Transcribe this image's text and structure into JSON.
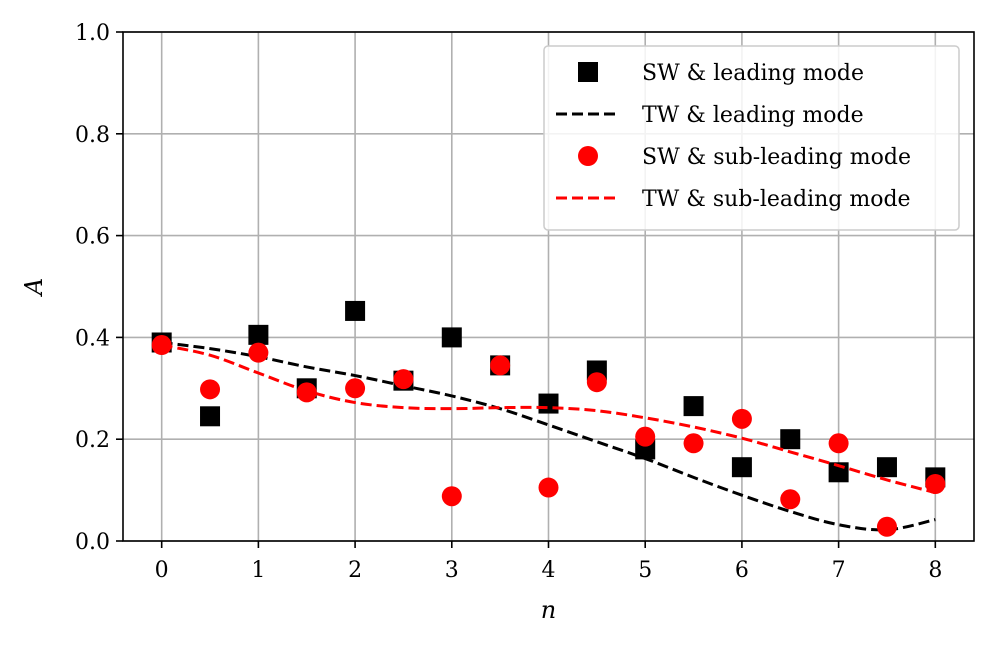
{
  "chart_data": {
    "type": "scatter",
    "title": "",
    "xlabel": "n",
    "ylabel": "A",
    "xlim": [
      -0.4,
      8.4
    ],
    "ylim": [
      0.0,
      1.0
    ],
    "xticks": [
      0,
      1,
      2,
      3,
      4,
      5,
      6,
      7,
      8
    ],
    "xtick_labels": [
      "0",
      "1",
      "2",
      "3",
      "4",
      "5",
      "6",
      "7",
      "8"
    ],
    "yticks": [
      0.0,
      0.2,
      0.4,
      0.6,
      0.8,
      1.0
    ],
    "ytick_labels": [
      "0.0",
      "0.2",
      "0.4",
      "0.6",
      "0.8",
      "1.0"
    ],
    "grid": true,
    "legend_position": "top-right",
    "series": [
      {
        "name": "SW & leading mode",
        "kind": "marker",
        "marker": "square",
        "color": "#000000",
        "x": [
          0,
          0.5,
          1,
          1.5,
          2,
          2.5,
          3,
          3.5,
          4,
          4.5,
          5,
          5.5,
          6,
          6.5,
          7,
          7.5,
          8
        ],
        "y": [
          0.39,
          0.245,
          0.405,
          0.3,
          0.452,
          0.315,
          0.4,
          0.345,
          0.27,
          0.335,
          0.18,
          0.265,
          0.145,
          0.2,
          0.135,
          0.145,
          0.125
        ]
      },
      {
        "name": "TW & leading mode",
        "kind": "line",
        "dash": "dashed",
        "color": "#000000",
        "x": [
          0,
          0.5,
          1,
          1.5,
          2,
          2.5,
          3,
          3.5,
          4,
          4.5,
          5,
          5.5,
          6,
          6.5,
          7,
          7.5,
          8
        ],
        "y": [
          0.39,
          0.378,
          0.362,
          0.342,
          0.325,
          0.305,
          0.285,
          0.26,
          0.228,
          0.195,
          0.162,
          0.125,
          0.09,
          0.058,
          0.032,
          0.022,
          0.042
        ]
      },
      {
        "name": "SW & sub-leading mode",
        "kind": "marker",
        "marker": "circle",
        "color": "#ff0000",
        "x": [
          0,
          0.5,
          1,
          1.5,
          2,
          2.5,
          3,
          3.5,
          4,
          4.5,
          5,
          5.5,
          6,
          6.5,
          7,
          7.5,
          8
        ],
        "y": [
          0.385,
          0.298,
          0.37,
          0.292,
          0.3,
          0.318,
          0.088,
          0.345,
          0.105,
          0.312,
          0.205,
          0.192,
          0.24,
          0.082,
          0.192,
          0.028,
          0.112
        ]
      },
      {
        "name": "TW & sub-leading mode",
        "kind": "line",
        "dash": "dashed",
        "color": "#ff0000",
        "x": [
          0,
          0.5,
          1,
          1.5,
          2,
          2.5,
          3,
          3.5,
          4,
          4.5,
          5,
          5.5,
          6,
          6.5,
          7,
          7.5,
          8
        ],
        "y": [
          0.385,
          0.365,
          0.33,
          0.295,
          0.272,
          0.262,
          0.26,
          0.262,
          0.262,
          0.256,
          0.242,
          0.224,
          0.202,
          0.175,
          0.148,
          0.12,
          0.095
        ]
      }
    ]
  }
}
